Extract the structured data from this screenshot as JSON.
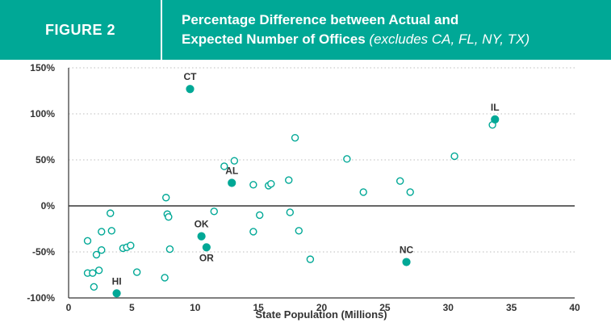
{
  "colors": {
    "accent": "#00a896",
    "point_fill": "#00a896",
    "point_hollow": "#ffffff",
    "axis": "#333333",
    "grid": "#bdbdbd"
  },
  "header": {
    "figure_label": "FIGURE 2",
    "title_line1": "Percentage Difference between Actual and",
    "title_line2": "Expected Number of Offices",
    "title_note": "(excludes CA, FL, NY, TX)"
  },
  "chart_data": {
    "type": "scatter",
    "xlabel": "State Population (Millions)",
    "ylabel": "",
    "xlim": [
      0,
      40
    ],
    "ylim": [
      -100,
      150
    ],
    "x_ticks": [
      0,
      5,
      10,
      15,
      20,
      25,
      30,
      35,
      40
    ],
    "y_ticks": [
      -100,
      -50,
      0,
      50,
      100,
      150
    ],
    "y_tick_labels": [
      "-100%",
      "-50%",
      "0%",
      "50%",
      "100%",
      "150%"
    ],
    "grid": "horizontal dotted",
    "highlighted": [
      {
        "label": "CT",
        "x": 9.6,
        "y": 127
      },
      {
        "label": "IL",
        "x": 33.7,
        "y": 94
      },
      {
        "label": "AL",
        "x": 12.9,
        "y": 25
      },
      {
        "label": "OK",
        "x": 10.5,
        "y": -33
      },
      {
        "label": "OR",
        "x": 10.9,
        "y": -45
      },
      {
        "label": "NC",
        "x": 26.7,
        "y": -61
      },
      {
        "label": "HI",
        "x": 3.8,
        "y": -95
      }
    ],
    "points": [
      [
        1.5,
        -38
      ],
      [
        1.5,
        -73
      ],
      [
        1.9,
        -73
      ],
      [
        2.0,
        -88
      ],
      [
        2.2,
        -53
      ],
      [
        2.4,
        -70
      ],
      [
        2.6,
        -48
      ],
      [
        2.6,
        -28
      ],
      [
        3.3,
        -8
      ],
      [
        3.4,
        -27
      ],
      [
        4.3,
        -46
      ],
      [
        4.6,
        -45
      ],
      [
        4.9,
        -43
      ],
      [
        5.4,
        -72
      ],
      [
        7.6,
        -78
      ],
      [
        7.7,
        9
      ],
      [
        7.8,
        -9
      ],
      [
        7.9,
        -12
      ],
      [
        8.0,
        -47
      ],
      [
        11.5,
        -6
      ],
      [
        12.3,
        43
      ],
      [
        13.1,
        49
      ],
      [
        14.6,
        23
      ],
      [
        14.6,
        -28
      ],
      [
        15.1,
        -10
      ],
      [
        15.8,
        22
      ],
      [
        16.0,
        24
      ],
      [
        17.4,
        28
      ],
      [
        17.5,
        -7
      ],
      [
        17.9,
        74
      ],
      [
        18.2,
        -27
      ],
      [
        19.1,
        -58
      ],
      [
        22.0,
        51
      ],
      [
        23.3,
        15
      ],
      [
        26.2,
        27
      ],
      [
        27.0,
        15
      ],
      [
        30.5,
        54
      ],
      [
        33.5,
        88
      ]
    ]
  }
}
